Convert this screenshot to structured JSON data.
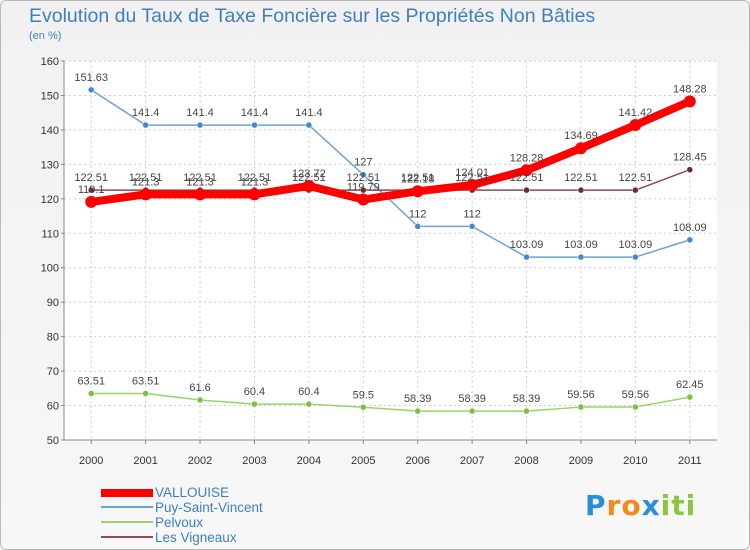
{
  "chart_data": {
    "type": "line",
    "title": "Evolution du Taux de Taxe Foncière sur les Propriétés Non Bâties",
    "subtitle": "(en %)",
    "xlabel": "",
    "ylabel": "(en %)",
    "ylim": [
      50,
      160
    ],
    "yticks": [
      50,
      60,
      70,
      80,
      90,
      100,
      110,
      120,
      130,
      140,
      150,
      160
    ],
    "grid": true,
    "categories": [
      "2000",
      "2001",
      "2002",
      "2003",
      "2004",
      "2005",
      "2006",
      "2007",
      "2008",
      "2009",
      "2010",
      "2011"
    ],
    "series": [
      {
        "name": "Puy-Saint-Vincent",
        "color": "#6aa2d8",
        "marker": "#3f8ad0",
        "values": [
          151.63,
          141.4,
          141.4,
          141.4,
          141.4,
          127,
          112,
          112,
          103.09,
          103.09,
          103.09,
          108.09
        ],
        "labels": [
          "151.63",
          "141.4",
          "141.4",
          "141.4",
          "141.4",
          "127",
          "112",
          "112",
          "103.09",
          "103.09",
          "103.09",
          "108.09"
        ]
      },
      {
        "name": "Pelvoux",
        "color": "#97d36a",
        "marker": "#78c23e",
        "values": [
          63.51,
          63.51,
          61.6,
          60.4,
          60.4,
          59.5,
          58.39,
          58.39,
          58.39,
          59.56,
          59.56,
          62.45
        ],
        "labels": [
          "63.51",
          "63.51",
          "61.6",
          "60.4",
          "60.4",
          "59.5",
          "58.39",
          "58.39",
          "58.39",
          "59.56",
          "59.56",
          "62.45"
        ]
      },
      {
        "name": "Les Vigneaux",
        "color": "#8b4b50",
        "marker": "#6b2a30",
        "values": [
          122.51,
          122.51,
          122.51,
          122.51,
          122.51,
          122.51,
          122.51,
          122.51,
          122.51,
          122.51,
          122.51,
          128.45
        ],
        "labels": [
          "122.51",
          "122.51",
          "122.51",
          "122.51",
          "122.51",
          "122.51",
          "122.51",
          "122.51",
          "122.51",
          "122.51",
          "122.51",
          "128.45"
        ]
      },
      {
        "name": "VALLOUISE",
        "color": "#ff0000",
        "marker": "#ff0000",
        "values": [
          119.1,
          121.3,
          121.3,
          121.3,
          123.72,
          119.79,
          122.18,
          124.01,
          128.28,
          134.69,
          141.42,
          148.28
        ],
        "labels": [
          "119.1",
          "121.3",
          "121.3",
          "121.3",
          "123.72",
          "119.79",
          "122.18",
          "124.01",
          "128.28",
          "134.69",
          "141.42",
          "148.28"
        ]
      }
    ]
  },
  "legend": [
    {
      "label": "VALLOUISE",
      "color": "#ff0000"
    },
    {
      "label": "Puy-Saint-Vincent",
      "color": "#6aa2d8"
    },
    {
      "label": "Pelvoux",
      "color": "#97d36a"
    },
    {
      "label": "Les Vigneaux",
      "color": "#8b4b50"
    }
  ],
  "brand": {
    "letters": [
      "P",
      "r",
      "o",
      "x",
      "i",
      "t",
      "i"
    ],
    "colors": [
      "#2a8ed8",
      "#f28a1b",
      "#f28a1b",
      "#2a8ed8",
      "#8cc63e",
      "#8cc63e",
      "#8cc63e"
    ]
  }
}
